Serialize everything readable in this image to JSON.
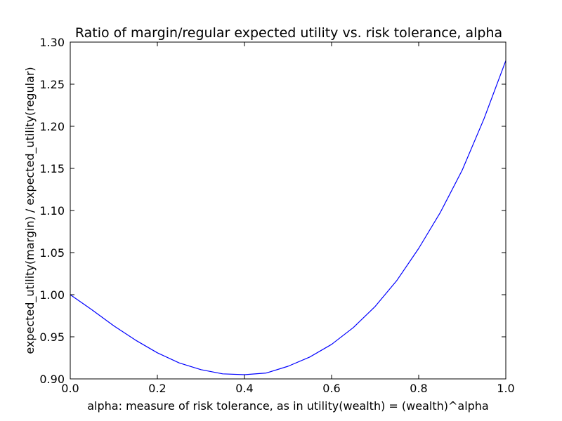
{
  "chart_data": {
    "type": "line",
    "title": "Ratio of margin/regular expected utility vs. risk tolerance, alpha",
    "xlabel": "alpha: measure of risk tolerance, as in utility(wealth) = (wealth)^alpha",
    "ylabel": "expected_utility(margin) / expected_utility(regular)",
    "xlim": [
      0.0,
      1.0
    ],
    "ylim": [
      0.9,
      1.3
    ],
    "x_ticks": [
      0.0,
      0.2,
      0.4,
      0.6,
      0.8,
      1.0
    ],
    "x_tick_labels": [
      "0.0",
      "0.2",
      "0.4",
      "0.6",
      "0.8",
      "1.0"
    ],
    "y_ticks": [
      0.9,
      0.95,
      1.0,
      1.05,
      1.1,
      1.15,
      1.2,
      1.25,
      1.3
    ],
    "y_tick_labels": [
      "0.90",
      "0.95",
      "1.00",
      "1.05",
      "1.10",
      "1.15",
      "1.20",
      "1.25",
      "1.30"
    ],
    "grid": false,
    "legend": "none",
    "series": [
      {
        "color": "#0000ff",
        "x": [
          0.0,
          0.05,
          0.1,
          0.15,
          0.2,
          0.25,
          0.3,
          0.35,
          0.4,
          0.45,
          0.5,
          0.55,
          0.6,
          0.65,
          0.7,
          0.75,
          0.8,
          0.85,
          0.9,
          0.95,
          1.0
        ],
        "y": [
          1.0,
          0.982,
          0.963,
          0.946,
          0.931,
          0.919,
          0.911,
          0.906,
          0.905,
          0.907,
          0.915,
          0.926,
          0.941,
          0.961,
          0.986,
          1.017,
          1.055,
          1.098,
          1.148,
          1.209,
          1.278
        ]
      }
    ]
  }
}
